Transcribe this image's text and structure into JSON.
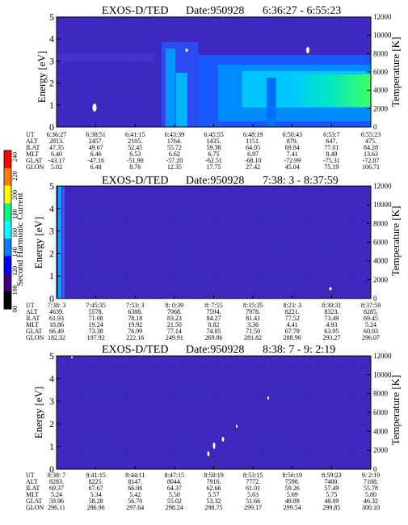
{
  "colorbar": {
    "title": "Second Harmonic Current",
    "ticks": [
      "240",
      "220",
      "200",
      "180",
      "160",
      "140",
      "120",
      "100",
      "80"
    ],
    "colors": [
      "#ff0000",
      "#ff8000",
      "#ffff00",
      "#00ff80",
      "#00ffff",
      "#0080ff",
      "#0000ff",
      "#400080",
      "#000000"
    ]
  },
  "chart_data": [
    {
      "type": "heatmap",
      "title": "EXOS-D/TED",
      "date_label": "Date:950928",
      "time_range": "6:36:27 - 6:55:23",
      "ylabel": "Energy [eV]",
      "y2label": "Temperature [K]",
      "y_ticks": [
        "5",
        "4",
        "3",
        "2",
        "1",
        "0"
      ],
      "y2_ticks": [
        "12000",
        "10000",
        "8000",
        "6000",
        "4000",
        "2000",
        "0"
      ],
      "ylim": [
        0,
        5
      ],
      "y2lim": [
        0,
        12000
      ],
      "row_labels": [
        "UT",
        "ALT",
        "ILAT",
        "MLT",
        "GLAT",
        "GLON"
      ],
      "columns": [
        [
          "6:36:27",
          "2813.",
          "47.35",
          "6.40",
          "-43.17",
          "5.02"
        ],
        [
          "6:38:51",
          "2457.",
          "49.67",
          "6.46",
          "-47.16",
          "6.48"
        ],
        [
          "6:41:15",
          "2105.",
          "52.45",
          "6.53",
          "-51.90",
          "8.76"
        ],
        [
          "6:43:39",
          "1764.",
          "55.72",
          "6.62",
          "-57.20",
          "12.35"
        ],
        [
          "6:45:55",
          "1435.",
          "59.38",
          "6.75",
          "-62.51",
          "17.75"
        ],
        [
          "6:48:19",
          "1151.",
          "64.05",
          "6.97",
          "-68.10",
          "27.42"
        ],
        [
          "6:50:43",
          "879.",
          "69.84",
          "7.41",
          "-72.99",
          "45.04"
        ],
        [
          "6:53:7",
          "647.",
          "77.01",
          "8.49",
          "-75.31",
          "75.19"
        ],
        [
          "6:55:23",
          "475.",
          "84.28",
          "13.63",
          "-72.87",
          "106.71"
        ]
      ]
    },
    {
      "type": "heatmap",
      "title": "EXOS-D/TED",
      "date_label": "Date:950928",
      "time_range": "7:38: 3 - 8:37:59",
      "ylabel": "Energy [eV]",
      "y2label": "Temperature [K]",
      "y_ticks": [
        "5",
        "4",
        "3",
        "2",
        "1",
        "0"
      ],
      "y2_ticks": [
        "12000",
        "10000",
        "8000",
        "6000",
        "4000",
        "2000",
        "0"
      ],
      "ylim": [
        0,
        5
      ],
      "y2lim": [
        0,
        12000
      ],
      "row_labels": [
        "UT",
        "ALT",
        "ILAT",
        "MLT",
        "GLAT",
        "GLON"
      ],
      "columns": [
        [
          "7:38: 3",
          "4639.",
          "61.93",
          "18.86",
          "66.49",
          "182.32"
        ],
        [
          "7:45:35",
          "5578.",
          "71.08",
          "19.24",
          "73.38",
          "197.92"
        ],
        [
          "7:53: 3",
          "6388.",
          "78.18",
          "19.92",
          "76.99",
          "222.16"
        ],
        [
          "8: 0:39",
          "7068.",
          "83.23",
          "21.50",
          "77.14",
          "249.91"
        ],
        [
          "8: 7:55",
          "7594.",
          "84.27",
          "0.82",
          "74.85",
          "269.86"
        ],
        [
          "8:15:35",
          "7978.",
          "81.41",
          "3.36",
          "71.50",
          "281.82"
        ],
        [
          "8:23: 3",
          "8221.",
          "77.52",
          "4.41",
          "67.79",
          "288.90"
        ],
        [
          "8:30:31",
          "8323.",
          "73.49",
          "4.93",
          "63.95",
          "293.27"
        ],
        [
          "8:37:59",
          "8285.",
          "69.45",
          "5.24",
          "60.03",
          "296.07"
        ]
      ]
    },
    {
      "type": "heatmap",
      "title": "EXOS-D/TED",
      "date_label": "Date:950928",
      "time_range": "8:38: 7 - 9: 2:19",
      "ylabel": "Energy [eV]",
      "y2label": "Temperature [K]",
      "y_ticks": [
        "5",
        "4",
        "3",
        "2",
        "1",
        "0"
      ],
      "y2_ticks": [
        "12000",
        "10000",
        "8000",
        "6000",
        "4000",
        "2000",
        "0"
      ],
      "ylim": [
        0,
        5
      ],
      "y2lim": [
        0,
        12000
      ],
      "row_labels": [
        "UT",
        "ALT",
        "ILAT",
        "MLT",
        "GLAT",
        "GLON"
      ],
      "columns": [
        [
          "8:38: 7",
          "8283.",
          "69.37",
          "5.24",
          "59.96",
          "296.11"
        ],
        [
          "8:41:15",
          "8225.",
          "67.67",
          "5.34",
          "58.28",
          "296.96"
        ],
        [
          "8:44:11",
          "8147.",
          "66.06",
          "5.42",
          "56.70",
          "297.64"
        ],
        [
          "8:47:15",
          "8044.",
          "64.37",
          "5.50",
          "55.02",
          "298.24"
        ],
        [
          "8:50:19",
          "7916.",
          "62.66",
          "5.57",
          "53.32",
          "298.75"
        ],
        [
          "8:53:15",
          "7772.",
          "61.01",
          "5.63",
          "51.66",
          "299.17"
        ],
        [
          "8:56:19",
          "7598.",
          "59.26",
          "5.69",
          "49.89",
          "299.54"
        ],
        [
          "8:59:23",
          "7400.",
          "57.49",
          "5.75",
          "48.09",
          "299.85"
        ],
        [
          "9: 2:19",
          "7188.",
          "55.78",
          "5.80",
          "46.32",
          "300.10"
        ]
      ]
    }
  ]
}
